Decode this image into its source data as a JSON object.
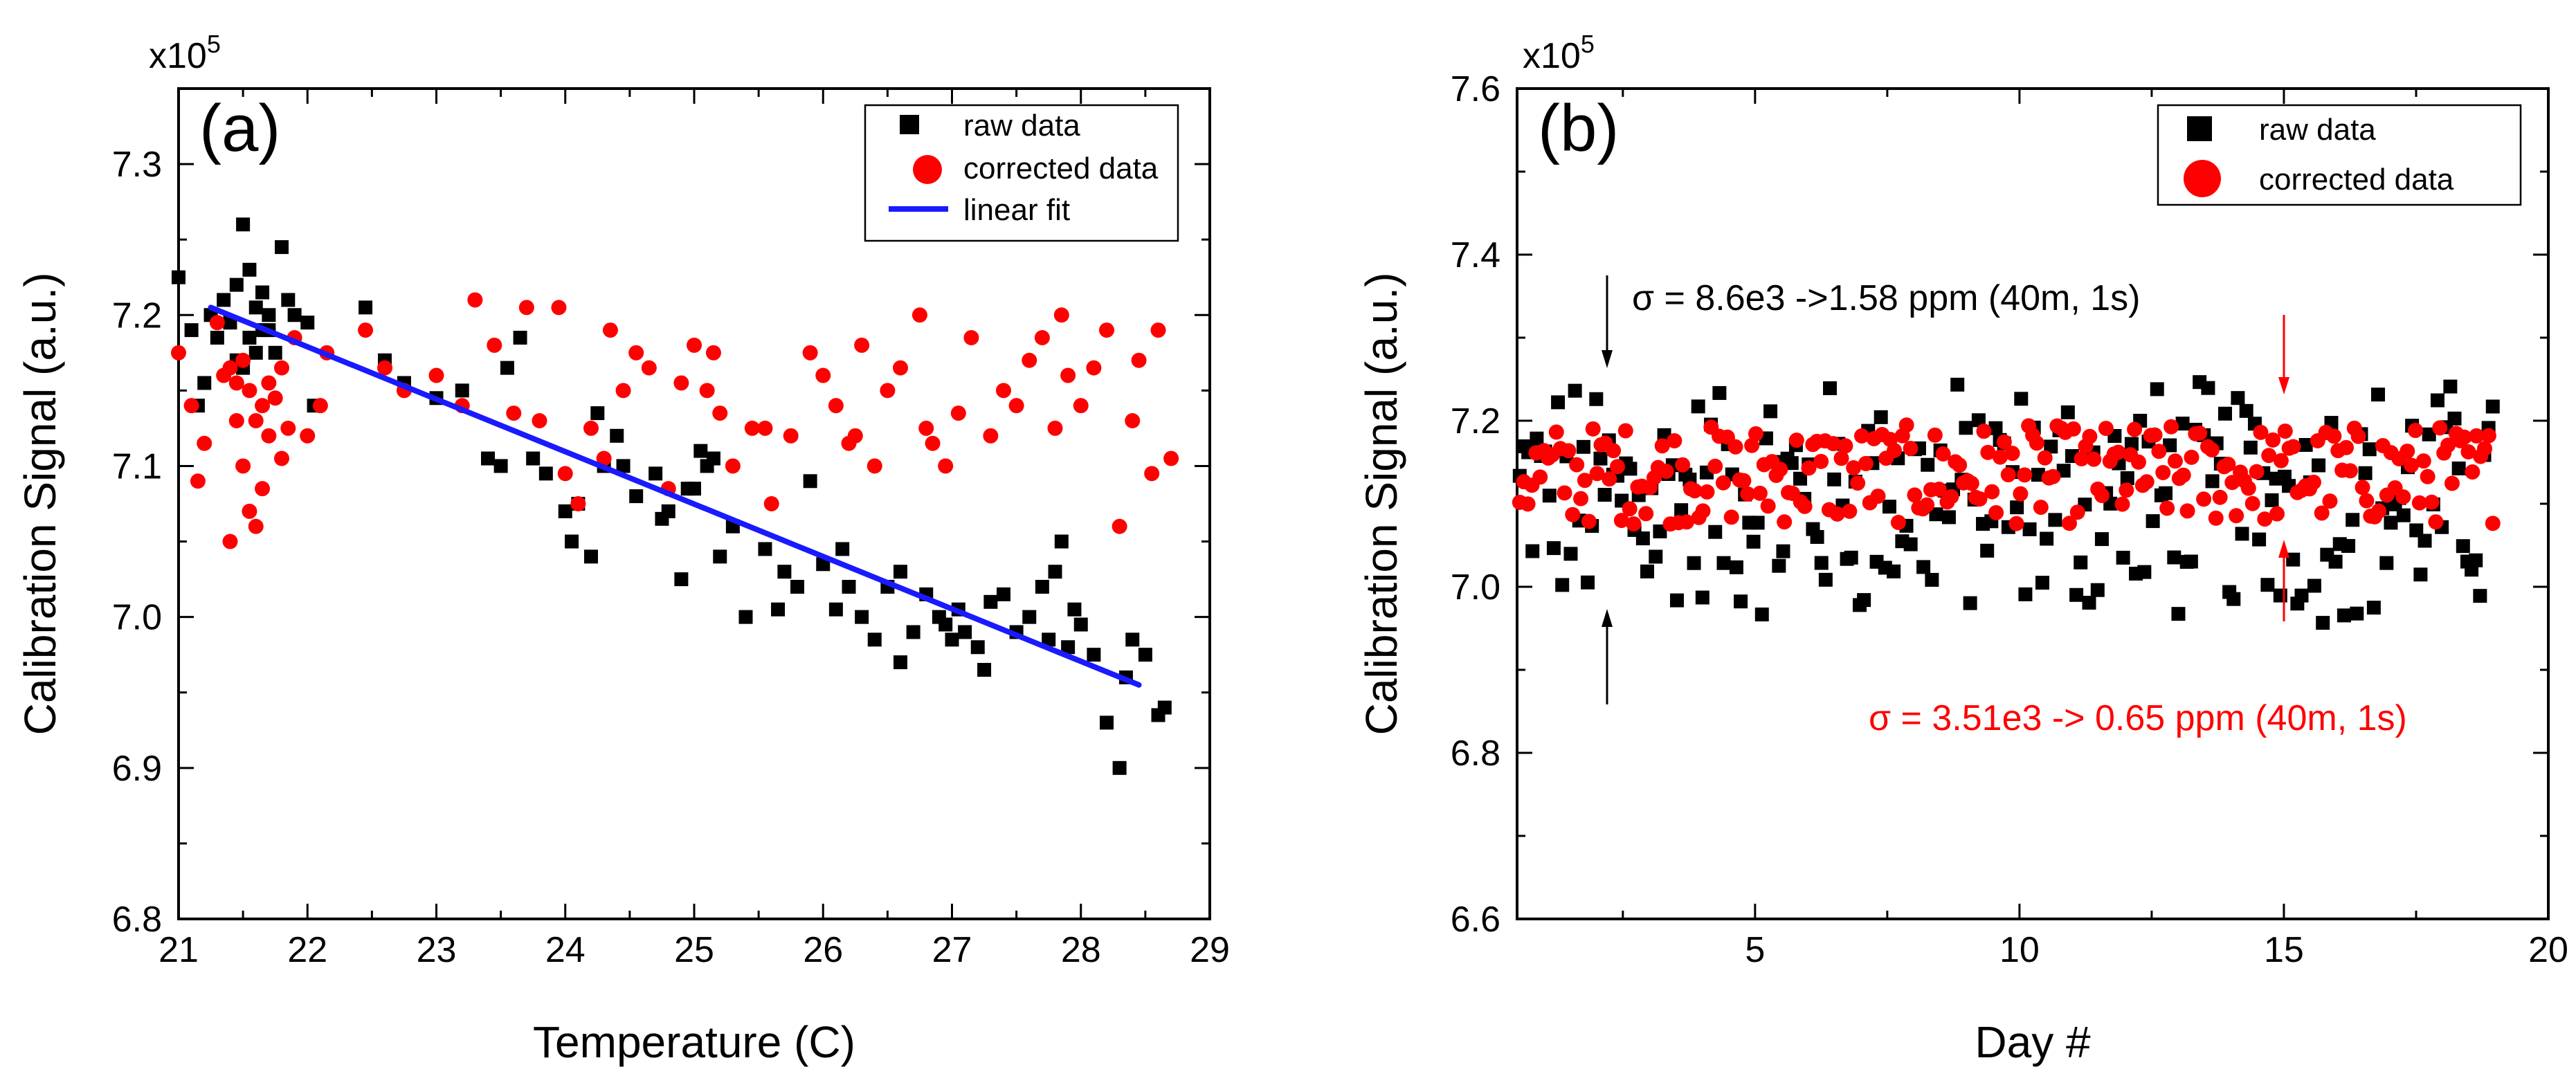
{
  "chart_data": [
    {
      "type": "scatter",
      "panel_label": "(a)",
      "xlabel": "Temperature (C)",
      "ylabel": "Calibration Signal (a.u.)",
      "y_multiplier_base": "x10",
      "y_multiplier_exp": "5",
      "xlim": [
        21,
        29
      ],
      "ylim": [
        6.8,
        7.35
      ],
      "xticks": [
        "21",
        "22",
        "23",
        "24",
        "25",
        "26",
        "27",
        "28",
        "29"
      ],
      "yticks": [
        "6.8",
        "6.9",
        "7.0",
        "7.1",
        "7.2",
        "7.3"
      ],
      "legend_position": "top-right",
      "series": [
        {
          "name": "raw data",
          "marker": "square",
          "color": "#000000",
          "points": [
            [
              21.0,
              7.225
            ],
            [
              21.1,
              7.19
            ],
            [
              21.15,
              7.14
            ],
            [
              21.2,
              7.155
            ],
            [
              21.25,
              7.2
            ],
            [
              21.3,
              7.185
            ],
            [
              21.35,
              7.21
            ],
            [
              21.4,
              7.195
            ],
            [
              21.45,
              7.22
            ],
            [
              21.5,
              7.26
            ],
            [
              21.55,
              7.23
            ],
            [
              21.6,
              7.205
            ],
            [
              21.65,
              7.215
            ],
            [
              21.7,
              7.19
            ],
            [
              21.75,
              7.175
            ],
            [
              21.8,
              7.245
            ],
            [
              21.85,
              7.21
            ],
            [
              21.9,
              7.2
            ],
            [
              22.0,
              7.195
            ],
            [
              22.05,
              7.14
            ],
            [
              21.45,
              7.17
            ],
            [
              21.55,
              7.185
            ],
            [
              21.6,
              7.175
            ],
            [
              21.7,
              7.2
            ],
            [
              21.5,
              7.165
            ],
            [
              21.65,
              7.19
            ],
            [
              22.45,
              7.205
            ],
            [
              22.6,
              7.17
            ],
            [
              22.75,
              7.155
            ],
            [
              23.0,
              7.145
            ],
            [
              23.2,
              7.15
            ],
            [
              23.4,
              7.105
            ],
            [
              23.5,
              7.1
            ],
            [
              23.55,
              7.165
            ],
            [
              23.65,
              7.185
            ],
            [
              23.75,
              7.105
            ],
            [
              23.85,
              7.095
            ],
            [
              24.0,
              7.07
            ],
            [
              24.05,
              7.05
            ],
            [
              24.1,
              7.075
            ],
            [
              24.2,
              7.04
            ],
            [
              24.25,
              7.135
            ],
            [
              24.3,
              7.1
            ],
            [
              24.4,
              7.12
            ],
            [
              24.45,
              7.1
            ],
            [
              24.55,
              7.08
            ],
            [
              24.7,
              7.095
            ],
            [
              24.75,
              7.065
            ],
            [
              24.8,
              7.07
            ],
            [
              24.9,
              7.025
            ],
            [
              25.0,
              7.085
            ],
            [
              25.05,
              7.11
            ],
            [
              25.1,
              7.1
            ],
            [
              25.15,
              7.105
            ],
            [
              25.2,
              7.04
            ],
            [
              25.3,
              7.06
            ],
            [
              25.4,
              7.0
            ],
            [
              25.55,
              7.045
            ],
            [
              25.7,
              7.03
            ],
            [
              25.8,
              7.02
            ],
            [
              25.9,
              7.09
            ],
            [
              26.0,
              7.035
            ],
            [
              26.1,
              7.005
            ],
            [
              26.15,
              7.045
            ],
            [
              26.2,
              7.02
            ],
            [
              26.3,
              7.0
            ],
            [
              26.4,
              6.985
            ],
            [
              26.5,
              7.02
            ],
            [
              26.6,
              7.03
            ],
            [
              26.7,
              6.99
            ],
            [
              26.8,
              7.015
            ],
            [
              26.9,
              7.0
            ],
            [
              27.0,
              6.985
            ],
            [
              27.1,
              6.99
            ],
            [
              27.2,
              6.98
            ],
            [
              27.25,
              6.965
            ],
            [
              27.3,
              7.01
            ],
            [
              27.4,
              7.015
            ],
            [
              27.5,
              6.99
            ],
            [
              27.6,
              7.0
            ],
            [
              27.7,
              7.02
            ],
            [
              27.75,
              6.985
            ],
            [
              27.8,
              7.03
            ],
            [
              27.85,
              7.05
            ],
            [
              27.9,
              6.98
            ],
            [
              27.95,
              7.005
            ],
            [
              28.0,
              6.995
            ],
            [
              28.1,
              6.975
            ],
            [
              28.2,
              6.93
            ],
            [
              28.3,
              6.9
            ],
            [
              28.35,
              6.96
            ],
            [
              28.4,
              6.985
            ],
            [
              28.5,
              6.975
            ],
            [
              28.6,
              6.935
            ],
            [
              28.65,
              6.94
            ],
            [
              26.6,
              6.97
            ],
            [
              27.05,
              7.005
            ],
            [
              26.95,
              6.995
            ],
            [
              25.65,
              7.005
            ],
            [
              24.95,
              7.085
            ]
          ]
        },
        {
          "name": "corrected data",
          "marker": "circle",
          "color": "#ff0000",
          "points": [
            [
              21.0,
              7.175
            ],
            [
              21.1,
              7.14
            ],
            [
              21.15,
              7.09
            ],
            [
              21.2,
              7.115
            ],
            [
              21.3,
              7.195
            ],
            [
              21.35,
              7.16
            ],
            [
              21.4,
              7.165
            ],
            [
              21.45,
              7.155
            ],
            [
              21.5,
              7.1
            ],
            [
              21.55,
              7.07
            ],
            [
              21.6,
              7.06
            ],
            [
              21.65,
              7.085
            ],
            [
              21.7,
              7.12
            ],
            [
              21.75,
              7.145
            ],
            [
              21.8,
              7.165
            ],
            [
              21.85,
              7.125
            ],
            [
              21.9,
              7.185
            ],
            [
              22.0,
              7.12
            ],
            [
              22.1,
              7.14
            ],
            [
              22.15,
              7.175
            ],
            [
              21.45,
              7.13
            ],
            [
              21.55,
              7.15
            ],
            [
              21.6,
              7.13
            ],
            [
              21.7,
              7.155
            ],
            [
              21.5,
              7.17
            ],
            [
              21.65,
              7.14
            ],
            [
              21.4,
              7.05
            ],
            [
              21.8,
              7.105
            ],
            [
              22.45,
              7.19
            ],
            [
              22.6,
              7.165
            ],
            [
              22.75,
              7.15
            ],
            [
              23.0,
              7.16
            ],
            [
              23.2,
              7.14
            ],
            [
              23.3,
              7.21
            ],
            [
              23.45,
              7.18
            ],
            [
              23.6,
              7.135
            ],
            [
              23.7,
              7.205
            ],
            [
              23.8,
              7.13
            ],
            [
              23.95,
              7.205
            ],
            [
              24.0,
              7.095
            ],
            [
              24.1,
              7.075
            ],
            [
              24.2,
              7.125
            ],
            [
              24.3,
              7.105
            ],
            [
              24.35,
              7.19
            ],
            [
              24.45,
              7.15
            ],
            [
              24.55,
              7.175
            ],
            [
              24.65,
              7.165
            ],
            [
              24.8,
              7.085
            ],
            [
              24.9,
              7.155
            ],
            [
              25.0,
              7.18
            ],
            [
              25.1,
              7.15
            ],
            [
              25.15,
              7.175
            ],
            [
              25.2,
              7.135
            ],
            [
              25.3,
              7.1
            ],
            [
              25.45,
              7.125
            ],
            [
              25.6,
              7.075
            ],
            [
              25.75,
              7.12
            ],
            [
              25.9,
              7.175
            ],
            [
              26.0,
              7.16
            ],
            [
              26.1,
              7.14
            ],
            [
              26.2,
              7.115
            ],
            [
              26.3,
              7.18
            ],
            [
              26.4,
              7.1
            ],
            [
              26.5,
              7.15
            ],
            [
              26.6,
              7.165
            ],
            [
              26.75,
              7.2
            ],
            [
              26.85,
              7.115
            ],
            [
              26.95,
              7.1
            ],
            [
              27.05,
              7.135
            ],
            [
              27.15,
              7.185
            ],
            [
              27.3,
              7.12
            ],
            [
              27.4,
              7.15
            ],
            [
              27.5,
              7.14
            ],
            [
              27.6,
              7.17
            ],
            [
              27.7,
              7.185
            ],
            [
              27.8,
              7.125
            ],
            [
              27.9,
              7.16
            ],
            [
              28.0,
              7.14
            ],
            [
              28.1,
              7.165
            ],
            [
              28.2,
              7.19
            ],
            [
              28.3,
              7.06
            ],
            [
              28.4,
              7.13
            ],
            [
              28.45,
              7.17
            ],
            [
              28.55,
              7.095
            ],
            [
              28.6,
              7.19
            ],
            [
              28.7,
              7.105
            ],
            [
              26.25,
              7.12
            ],
            [
              27.85,
              7.2
            ],
            [
              25.55,
              7.125
            ],
            [
              26.8,
              7.125
            ]
          ]
        }
      ],
      "fit": {
        "name": "linear fit",
        "color": "#1a1aff",
        "x": [
          21.25,
          28.45
        ],
        "y": [
          7.205,
          6.955
        ]
      }
    },
    {
      "type": "scatter",
      "panel_label": "(b)",
      "xlabel": "Day #",
      "ylabel": "Calibration Signal (a.u.)",
      "y_multiplier_base": "x10",
      "y_multiplier_exp": "5",
      "xlim": [
        0.5,
        20
      ],
      "ylim": [
        6.6,
        7.6
      ],
      "xticks": [
        "5",
        "10",
        "15",
        "20"
      ],
      "xtick_values": [
        5,
        10,
        15,
        20
      ],
      "yticks": [
        "6.6",
        "6.8",
        "7.0",
        "7.2",
        "7.4",
        "7.6"
      ],
      "legend_position": "top-right",
      "annotations": [
        {
          "text": "σ = 8.6e3 ->1.58 ppm (40m, 1s)",
          "color": "#000000"
        },
        {
          "text": "σ = 3.51e3 -> 0.65 ppm (40m, 1s)",
          "color": "#ff0000"
        }
      ],
      "series": [
        {
          "name": "raw data",
          "marker": "square",
          "color": "#000000"
        },
        {
          "name": "corrected data",
          "marker": "circle",
          "color": "#ff0000"
        }
      ]
    }
  ]
}
